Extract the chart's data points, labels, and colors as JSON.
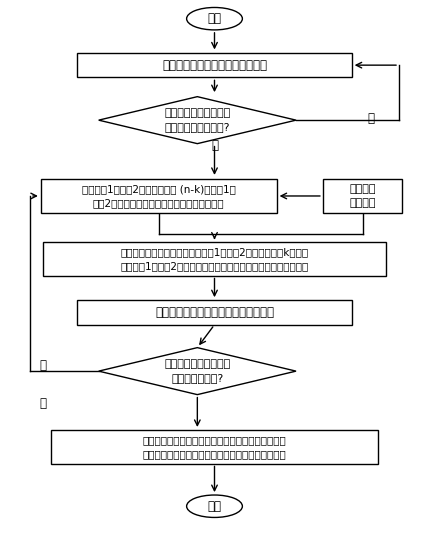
{
  "background_color": "#ffffff",
  "line_color": "#000000",
  "box_fill": "#ffffff",
  "box_edge": "#000000",
  "text_color": "#000000",
  "fontsize": 8.5,
  "start_text": "开始",
  "end_text": "结束",
  "box1_text": "离散输水线路交汇处控制节点水位",
  "diamond1_text": "控制节点不同水位系统\n总运行功率计算结束?",
  "box2l_text": "离散线路1或线路2流量，确定后 (n-k)级线路1、\n线路2不同流量分配、优化运行方案与运行功率",
  "box2r_text": "离散各级\n泵站扬程",
  "box3_text": "计算控制节点处总流量，离散线路1或线路2流量，确定前k级泵站\n系统线路1与线路2的最优流量分配、优化运行方案与系统运行功率",
  "box4_text": "计算整个并联梯级泵站系统总运行功率",
  "diamond2_text": "不同流量分配系统总运\n行功率计算结束?",
  "box5_text": "根据计算的控制节点不同水位时系统总运行功率，找\n出最小值，其对应的运行方案即为系统优化运行方案",
  "label_yes1": "是",
  "label_no1": "否",
  "label_no2": "否",
  "label_yes2": "是"
}
